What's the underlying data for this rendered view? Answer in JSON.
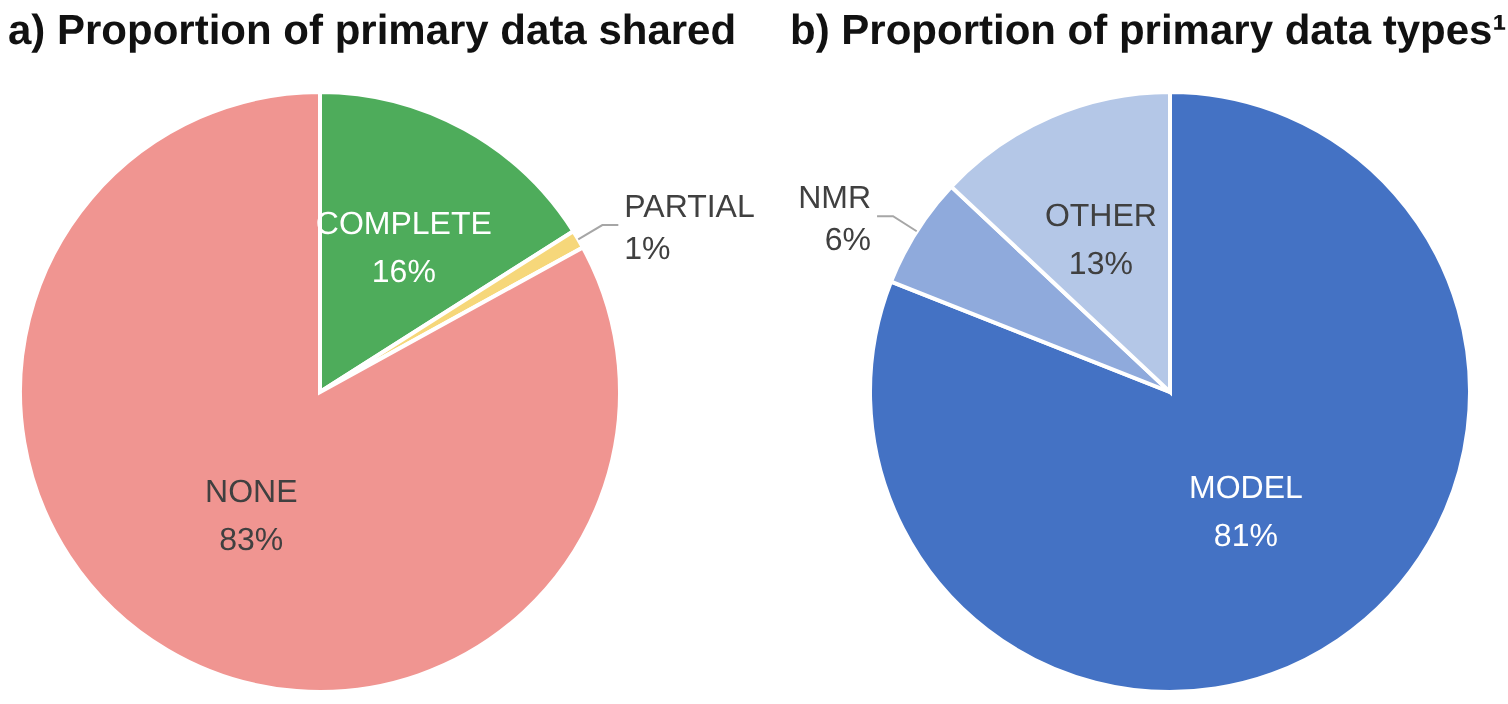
{
  "chart_data": [
    {
      "type": "pie",
      "title": "a) Proportion of primary data shared",
      "categories": [
        "COMPLETE",
        "PARTIAL",
        "NONE"
      ],
      "values": [
        16,
        1,
        83
      ],
      "value_labels": [
        "16%",
        "1%",
        "83%"
      ],
      "colors": [
        "#4eac5b",
        "#f6d77a",
        "#f09591"
      ],
      "legend": false
    },
    {
      "type": "pie",
      "title": "b) Proportion of primary data types¹",
      "categories": [
        "MODEL",
        "NMR",
        "OTHER"
      ],
      "values": [
        81,
        6,
        13
      ],
      "value_labels": [
        "81%",
        "6%",
        "13%"
      ],
      "colors": [
        "#4472c4",
        "#8faadc",
        "#b4c7e7"
      ],
      "legend": false
    }
  ]
}
